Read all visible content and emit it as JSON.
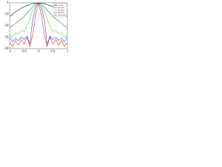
{
  "chart_data": {
    "type": "line",
    "x": [
      -1,
      -0.9,
      -0.8,
      -0.7,
      -0.6,
      -0.5,
      -0.4,
      -0.3,
      -0.2,
      -0.1,
      0,
      0.1,
      0.2,
      0.3,
      0.4,
      0.5,
      0.6,
      0.7,
      0.8,
      0.9,
      1
    ],
    "series": [
      {
        "name": "5 µm",
        "color": "#000000",
        "values": [
          -12,
          -10,
          -8,
          -6.3,
          -4.8,
          -3.5,
          -2.4,
          -1.5,
          -0.8,
          -0.3,
          0,
          -0.3,
          -0.8,
          -1.5,
          -2.4,
          -3.5,
          -4.8,
          -6.3,
          -8,
          -10,
          -12
        ]
      },
      {
        "name": "10 µm",
        "color": "#1f7a3a",
        "values": [
          -22,
          -20,
          -18,
          -16,
          -14,
          -12,
          -9,
          -6.5,
          -3.5,
          -1,
          0,
          -1,
          -3.5,
          -6.5,
          -9,
          -12,
          -14,
          -16,
          -18,
          -20,
          -22
        ]
      },
      {
        "name": "20 µm",
        "color": "#66cc66",
        "values": [
          -28,
          -30,
          -26,
          -27,
          -24,
          -25,
          -20,
          -14,
          -7,
          -2,
          0,
          -2,
          -7,
          -14,
          -20,
          -25,
          -24,
          -27,
          -26,
          -30,
          -28
        ]
      },
      {
        "name": "50 µm",
        "color": "#2244cc",
        "values": [
          -30,
          -34,
          -31,
          -33,
          -30,
          -32,
          -29,
          -36,
          -15,
          -4,
          0,
          -4,
          -15,
          -36,
          -29,
          -32,
          -30,
          -33,
          -31,
          -34,
          -30
        ]
      },
      {
        "name": "100 µm",
        "color": "#dd2222",
        "values": [
          -35,
          -38,
          -33,
          -37,
          -32,
          -36,
          -30,
          -38,
          -28,
          -10,
          0,
          -10,
          -28,
          -38,
          -30,
          -36,
          -32,
          -37,
          -33,
          -38,
          -35
        ]
      }
    ],
    "xlim": [
      -1,
      1
    ],
    "xticks": [
      -1,
      -0.5,
      0,
      0.5,
      1
    ],
    "ylim": [
      -40,
      0
    ],
    "yticks": [
      -40,
      -30,
      -20,
      -10,
      0
    ],
    "grid": true,
    "legend": "upper right"
  }
}
